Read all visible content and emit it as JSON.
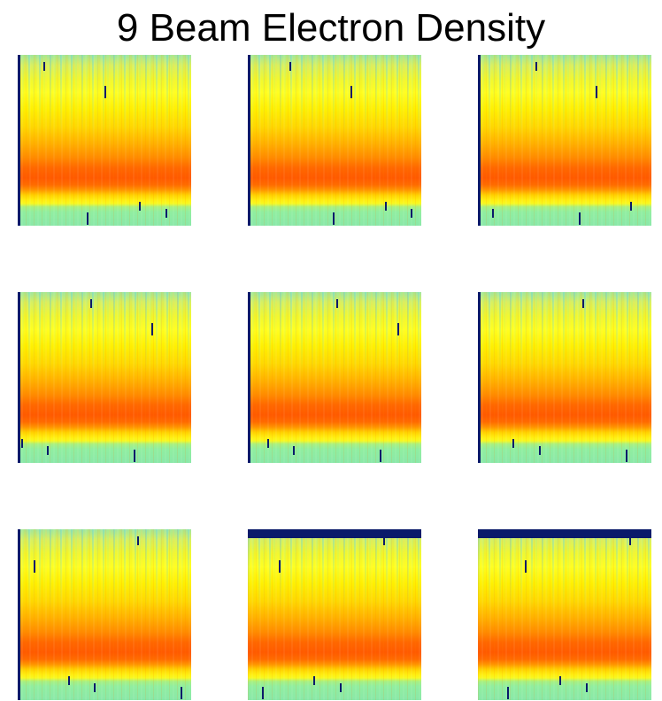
{
  "chart_data": {
    "type": "heatmap",
    "title": "9 Beam Electron Density"
  }
}
